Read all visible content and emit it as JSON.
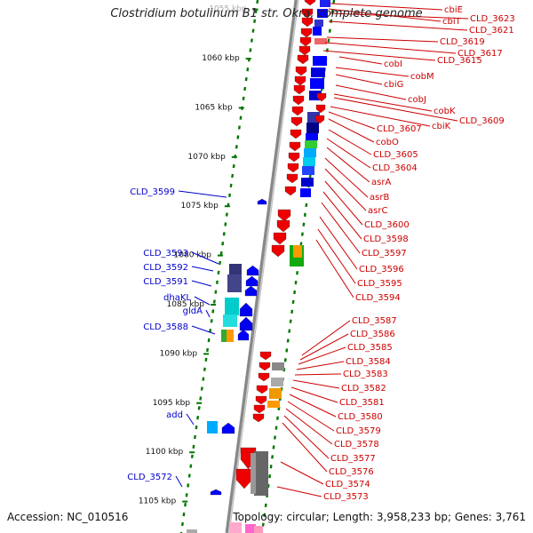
{
  "title": "Clostridium botulinum B1 str. Okra, complete genome",
  "footer": {
    "accession": "Accession: NC_010516",
    "topology": "Topology: circular; Length: 3,958,233 bp; Genes: 3,761"
  },
  "colors": {
    "forward_gene": "#0000ff",
    "reverse_gene": "#ff0000",
    "left_label": "#0000cc",
    "right_label": "#cc0000",
    "tick": "#007700",
    "backbone": "#888888"
  },
  "ruler": [
    {
      "kbp": 1055,
      "label": "1055 kbp"
    },
    {
      "kbp": 1060,
      "label": "1060 kbp"
    },
    {
      "kbp": 1065,
      "label": "1065 kbp"
    },
    {
      "kbp": 1070,
      "label": "1070 kbp"
    },
    {
      "kbp": 1075,
      "label": "1075 kbp"
    },
    {
      "kbp": 1080,
      "label": "1080 kbp"
    },
    {
      "kbp": 1085,
      "label": "1085 kbp"
    },
    {
      "kbp": 1090,
      "label": "1090 kbp"
    },
    {
      "kbp": 1095,
      "label": "1095 kbp"
    },
    {
      "kbp": 1100,
      "label": "1100 kbp"
    },
    {
      "kbp": 1105,
      "label": "1105 kbp"
    }
  ],
  "left_labels": [
    "CLD_3599",
    "CLD_3593",
    "CLD_3592",
    "CLD_3591",
    "dhaKL",
    "gldA",
    "CLD_3588",
    "add",
    "CLD_3572"
  ],
  "right_labels": [
    "cbiE",
    "cbiT",
    "CLD_3623",
    "CLD_3621",
    "CLD_3619",
    "CLD_3617",
    "CLD_3615",
    "cobI",
    "cobM",
    "cbiG",
    "cobJ",
    "cobK",
    "CLD_3609",
    "cbiK",
    "CLD_3607",
    "cobO",
    "CLD_3605",
    "CLD_3604",
    "asrA",
    "asrB",
    "asrC",
    "CLD_3600",
    "CLD_3598",
    "CLD_3597",
    "CLD_3596",
    "CLD_3595",
    "CLD_3594",
    "CLD_3587",
    "CLD_3586",
    "CLD_3585",
    "CLD_3584",
    "CLD_3583",
    "CLD_3582",
    "CLD_3581",
    "CLD_3580",
    "CLD_3579",
    "CLD_3578",
    "CLD_3577",
    "CLD_3576",
    "CLD_3574",
    "CLD_3573"
  ]
}
